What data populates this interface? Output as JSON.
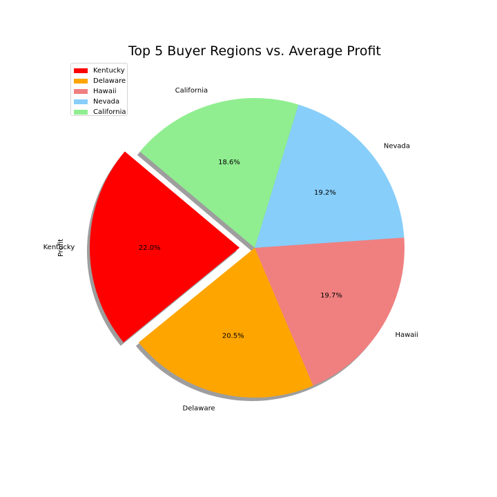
{
  "chart_data": {
    "type": "pie",
    "title": "Top 5 Buyer Regions vs. Average Profit",
    "ylabel": "Profit",
    "categories": [
      "Kentucky",
      "Delaware",
      "Hawaii",
      "Nevada",
      "California"
    ],
    "values": [
      22.0,
      20.5,
      19.7,
      19.2,
      18.6
    ],
    "percent_labels": [
      "22.0%",
      "20.5%",
      "19.7%",
      "19.2%",
      "18.6%"
    ],
    "colors": [
      "#ff0000",
      "#ffa500",
      "#f08080",
      "#87cefa",
      "#90ee90"
    ],
    "exploded": [
      "Kentucky"
    ],
    "shadow": true,
    "legend_position": "upper-left"
  }
}
